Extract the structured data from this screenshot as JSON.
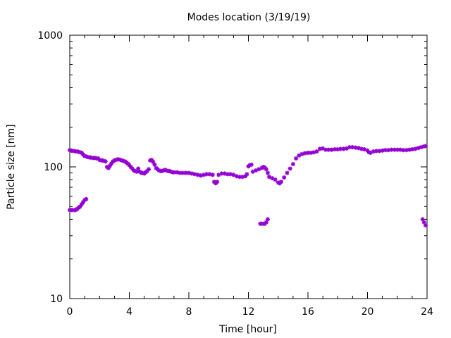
{
  "chart_data": {
    "type": "scatter",
    "title": "Modes location (3/19/19)",
    "xlabel": "Time [hour]",
    "ylabel": "Particle size [nm]",
    "xlim": [
      0,
      24
    ],
    "ylim": [
      10,
      1000
    ],
    "yscale": "log",
    "x_ticks": [
      0,
      4,
      8,
      12,
      16,
      20,
      24
    ],
    "y_ticks": [
      10,
      100,
      1000
    ],
    "marker_color": "#9400D3",
    "grid": false,
    "legend": "none",
    "series": [
      {
        "points": [
          [
            0.0,
            134
          ],
          [
            0.1,
            133
          ],
          [
            0.2,
            132
          ],
          [
            0.3,
            132
          ],
          [
            0.4,
            131
          ],
          [
            0.5,
            131
          ],
          [
            0.6,
            130
          ],
          [
            0.7,
            129
          ],
          [
            0.8,
            128
          ],
          [
            0.9,
            124
          ],
          [
            1.0,
            121
          ],
          [
            1.1,
            120
          ],
          [
            1.2,
            119
          ],
          [
            1.3,
            118
          ],
          [
            1.4,
            118
          ],
          [
            1.5,
            117
          ],
          [
            1.6,
            117
          ],
          [
            1.7,
            117
          ],
          [
            1.8,
            116
          ],
          [
            1.9,
            116
          ],
          [
            2.0,
            113
          ],
          [
            2.1,
            112
          ],
          [
            2.2,
            112
          ],
          [
            2.3,
            111
          ],
          [
            2.4,
            110
          ],
          [
            2.5,
            100
          ],
          [
            2.6,
            98
          ],
          [
            2.7,
            102
          ],
          [
            2.8,
            106
          ],
          [
            2.9,
            110
          ],
          [
            3.0,
            112
          ],
          [
            3.1,
            113
          ],
          [
            3.2,
            114
          ],
          [
            3.3,
            114
          ],
          [
            3.4,
            113
          ],
          [
            3.5,
            112
          ],
          [
            3.6,
            111
          ],
          [
            3.7,
            110
          ],
          [
            3.8,
            108
          ],
          [
            3.9,
            106
          ],
          [
            4.0,
            103
          ],
          [
            4.1,
            100
          ],
          [
            4.2,
            97
          ],
          [
            4.3,
            94
          ],
          [
            4.4,
            93
          ],
          [
            4.5,
            92
          ],
          [
            4.6,
            97
          ],
          [
            4.7,
            92
          ],
          [
            4.8,
            90
          ],
          [
            4.9,
            90
          ],
          [
            5.0,
            89
          ],
          [
            5.1,
            91
          ],
          [
            5.2,
            93
          ],
          [
            5.3,
            96
          ],
          [
            5.4,
            112
          ],
          [
            5.5,
            113
          ],
          [
            5.6,
            109
          ],
          [
            5.7,
            104
          ],
          [
            5.8,
            98
          ],
          [
            5.9,
            96
          ],
          [
            6.0,
            94
          ],
          [
            6.1,
            93
          ],
          [
            6.2,
            93
          ],
          [
            6.3,
            94
          ],
          [
            6.4,
            95
          ],
          [
            6.5,
            94
          ],
          [
            6.6,
            93
          ],
          [
            6.7,
            93
          ],
          [
            6.8,
            92
          ],
          [
            6.9,
            91
          ],
          [
            7.0,
            91
          ],
          [
            7.2,
            91
          ],
          [
            7.4,
            90
          ],
          [
            7.6,
            90
          ],
          [
            7.8,
            90
          ],
          [
            8.0,
            90
          ],
          [
            8.2,
            89
          ],
          [
            8.4,
            88
          ],
          [
            8.6,
            87
          ],
          [
            8.8,
            86
          ],
          [
            9.0,
            87
          ],
          [
            9.2,
            88
          ],
          [
            9.4,
            88
          ],
          [
            9.6,
            87
          ],
          [
            9.7,
            77
          ],
          [
            9.8,
            75
          ],
          [
            9.9,
            77
          ],
          [
            10.0,
            87
          ],
          [
            10.2,
            89
          ],
          [
            10.4,
            89
          ],
          [
            10.6,
            88
          ],
          [
            10.8,
            88
          ],
          [
            11.0,
            87
          ],
          [
            11.2,
            85
          ],
          [
            11.4,
            84
          ],
          [
            11.6,
            84
          ],
          [
            11.8,
            85
          ],
          [
            11.9,
            88
          ],
          [
            12.0,
            101
          ],
          [
            12.1,
            103
          ],
          [
            12.2,
            104
          ],
          [
            12.3,
            92
          ],
          [
            12.5,
            94
          ],
          [
            12.7,
            96
          ],
          [
            12.9,
            98
          ],
          [
            13.0,
            100
          ],
          [
            13.1,
            99
          ],
          [
            13.2,
            96
          ],
          [
            13.3,
            90
          ],
          [
            13.4,
            84
          ],
          [
            13.6,
            82
          ],
          [
            13.8,
            80
          ],
          [
            14.0,
            76
          ],
          [
            14.1,
            75
          ],
          [
            14.2,
            77
          ],
          [
            14.4,
            83
          ],
          [
            14.6,
            90
          ],
          [
            14.8,
            97
          ],
          [
            15.0,
            105
          ],
          [
            15.2,
            116
          ],
          [
            15.4,
            122
          ],
          [
            15.6,
            125
          ],
          [
            15.8,
            127
          ],
          [
            16.0,
            128
          ],
          [
            16.2,
            128
          ],
          [
            16.4,
            129
          ],
          [
            16.6,
            131
          ],
          [
            16.8,
            137
          ],
          [
            17.0,
            138
          ],
          [
            17.2,
            135
          ],
          [
            17.4,
            135
          ],
          [
            17.6,
            135
          ],
          [
            17.8,
            136
          ],
          [
            18.0,
            136
          ],
          [
            18.2,
            137
          ],
          [
            18.4,
            137
          ],
          [
            18.6,
            138
          ],
          [
            18.8,
            141
          ],
          [
            19.0,
            141
          ],
          [
            19.2,
            140
          ],
          [
            19.4,
            139
          ],
          [
            19.6,
            137
          ],
          [
            19.8,
            136
          ],
          [
            20.0,
            133
          ],
          [
            20.1,
            129
          ],
          [
            20.2,
            128
          ],
          [
            20.4,
            131
          ],
          [
            20.6,
            132
          ],
          [
            20.8,
            132
          ],
          [
            21.0,
            133
          ],
          [
            21.2,
            134
          ],
          [
            21.4,
            134
          ],
          [
            21.6,
            135
          ],
          [
            21.8,
            135
          ],
          [
            22.0,
            135
          ],
          [
            22.2,
            135
          ],
          [
            22.4,
            134
          ],
          [
            22.6,
            134
          ],
          [
            22.8,
            135
          ],
          [
            23.0,
            136
          ],
          [
            23.2,
            137
          ],
          [
            23.4,
            139
          ],
          [
            23.6,
            141
          ],
          [
            23.8,
            143
          ],
          [
            23.9,
            144
          ],
          [
            0.0,
            47
          ],
          [
            0.1,
            47
          ],
          [
            0.2,
            47
          ],
          [
            0.3,
            47
          ],
          [
            0.4,
            47
          ],
          [
            0.5,
            48
          ],
          [
            0.6,
            49
          ],
          [
            0.7,
            50
          ],
          [
            0.8,
            52
          ],
          [
            0.9,
            54
          ],
          [
            1.0,
            56
          ],
          [
            1.1,
            57
          ],
          [
            12.8,
            37
          ],
          [
            12.9,
            37
          ],
          [
            13.0,
            37
          ],
          [
            13.1,
            37
          ],
          [
            13.2,
            38
          ],
          [
            13.3,
            40
          ],
          [
            23.7,
            40
          ],
          [
            23.8,
            38
          ],
          [
            23.9,
            36
          ]
        ]
      }
    ]
  }
}
